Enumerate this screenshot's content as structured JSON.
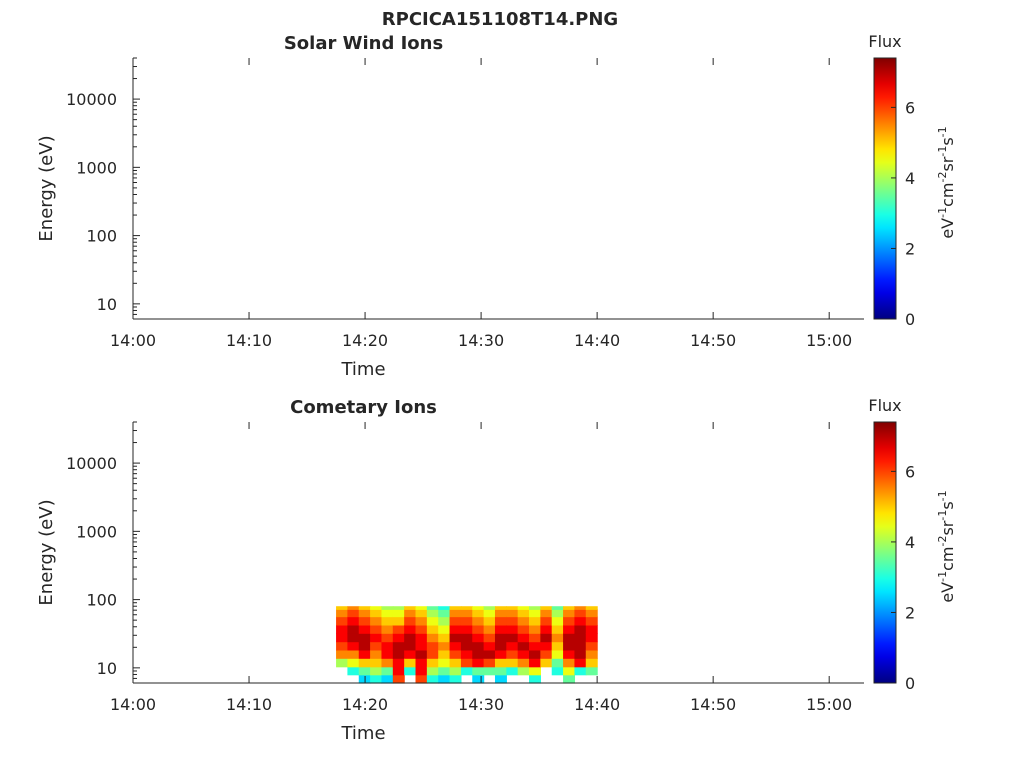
{
  "figure": {
    "title": "RPCICA151108T14.PNG"
  },
  "chart_data": [
    {
      "type": "heatmap",
      "title": "Solar Wind Ions",
      "xlabel": "Time",
      "ylabel": "Energy (eV)",
      "x_ticks": [
        "14:00",
        "14:10",
        "14:20",
        "14:30",
        "14:40",
        "14:50",
        "15:00"
      ],
      "x_range": [
        "14:00",
        "15:03"
      ],
      "y_scale": "log",
      "y_ticks": [
        10,
        100,
        1000,
        10000
      ],
      "y_tick_labels": [
        "10",
        "100",
        "1000",
        "10000"
      ],
      "y_range": [
        6,
        40000
      ],
      "colorbar": {
        "label": "Flux",
        "units": "eV-1cm-2sr-1s-1",
        "ticks": [
          0,
          2,
          4,
          6
        ],
        "range": [
          0,
          7.4
        ],
        "colormap": "jet"
      },
      "data_present": false,
      "x": [],
      "y": [],
      "z": []
    },
    {
      "type": "heatmap",
      "title": "Cometary Ions",
      "xlabel": "Time",
      "ylabel": "Energy (eV)",
      "x_ticks": [
        "14:00",
        "14:10",
        "14:20",
        "14:30",
        "14:40",
        "14:50",
        "15:00"
      ],
      "x_range": [
        "14:00",
        "15:03"
      ],
      "y_scale": "log",
      "y_ticks": [
        10,
        100,
        1000,
        10000
      ],
      "y_tick_labels": [
        "10",
        "100",
        "1000",
        "10000"
      ],
      "y_range": [
        6,
        40000
      ],
      "colorbar": {
        "label": "Flux",
        "units": "eV-1cm-2sr-1s-1",
        "ticks": [
          0,
          2,
          4,
          6
        ],
        "range": [
          0,
          7.4
        ],
        "colormap": "jet"
      },
      "data_present": true,
      "data_time_range": [
        "14:17:30",
        "14:40:00"
      ],
      "x": [
        "14:18",
        "14:19",
        "14:20",
        "14:21",
        "14:22",
        "14:23",
        "14:24",
        "14:25",
        "14:26",
        "14:27",
        "14:28",
        "14:29",
        "14:30",
        "14:31",
        "14:32",
        "14:33",
        "14:34",
        "14:35",
        "14:36",
        "14:37",
        "14:38",
        "14:39",
        "14:40"
      ],
      "y": [
        7,
        9,
        12,
        16,
        21,
        28,
        37,
        49,
        65,
        80
      ],
      "z": [
        [
          0.0,
          0.0,
          2.5,
          3.0,
          2.5,
          6.0,
          0.0,
          6.0,
          3.0,
          2.5,
          3.0,
          0.0,
          2.5,
          0.0,
          2.5,
          0.0,
          0.0,
          3.0,
          0.0,
          0.0,
          3.5,
          0.0,
          0.0
        ],
        [
          0.0,
          3.0,
          3.5,
          4.0,
          3.5,
          6.5,
          3.0,
          6.5,
          4.0,
          3.5,
          4.0,
          3.0,
          3.5,
          3.5,
          3.5,
          3.0,
          4.0,
          4.5,
          0.0,
          3.0,
          4.5,
          3.0,
          3.5
        ],
        [
          4.0,
          4.5,
          5.0,
          5.0,
          5.5,
          6.5,
          5.0,
          6.5,
          5.0,
          4.5,
          5.0,
          6.0,
          6.5,
          6.0,
          5.0,
          5.0,
          5.5,
          6.5,
          5.0,
          3.5,
          5.5,
          6.5,
          5.0
        ],
        [
          5.5,
          5.5,
          6.5,
          5.5,
          6.5,
          7.0,
          6.5,
          7.0,
          6.0,
          5.0,
          6.0,
          6.5,
          7.0,
          7.0,
          6.5,
          6.0,
          6.5,
          7.0,
          6.0,
          4.5,
          6.5,
          7.0,
          5.5
        ],
        [
          6.0,
          6.5,
          7.0,
          6.0,
          6.5,
          7.0,
          7.0,
          6.5,
          6.0,
          5.5,
          6.5,
          7.0,
          7.0,
          6.5,
          7.0,
          6.5,
          7.0,
          6.5,
          6.5,
          5.0,
          7.0,
          7.0,
          6.0
        ],
        [
          6.5,
          7.0,
          7.0,
          6.5,
          6.0,
          6.5,
          7.0,
          6.5,
          5.5,
          5.0,
          7.0,
          7.0,
          6.5,
          6.0,
          7.0,
          7.0,
          6.5,
          6.0,
          7.0,
          5.5,
          7.0,
          7.0,
          6.5
        ],
        [
          6.5,
          7.0,
          6.5,
          6.0,
          5.5,
          6.0,
          6.5,
          6.0,
          5.0,
          4.5,
          6.5,
          6.5,
          6.0,
          5.5,
          6.5,
          6.5,
          6.0,
          5.5,
          6.5,
          5.0,
          6.5,
          7.0,
          6.5
        ],
        [
          6.0,
          6.5,
          6.0,
          5.5,
          5.0,
          5.0,
          6.0,
          5.5,
          4.5,
          4.0,
          6.0,
          6.0,
          5.5,
          5.0,
          6.0,
          6.0,
          5.5,
          5.0,
          6.0,
          4.5,
          6.0,
          6.5,
          6.0
        ],
        [
          5.5,
          6.0,
          5.5,
          5.0,
          4.5,
          4.5,
          5.5,
          5.0,
          4.0,
          3.5,
          5.5,
          5.5,
          5.0,
          4.5,
          5.5,
          5.5,
          5.0,
          4.5,
          5.5,
          4.0,
          5.5,
          6.0,
          5.5
        ],
        [
          5.0,
          5.5,
          5.0,
          4.5,
          4.0,
          4.0,
          5.0,
          4.5,
          3.5,
          3.0,
          5.0,
          5.0,
          4.5,
          4.0,
          5.0,
          5.0,
          4.5,
          4.0,
          5.0,
          3.5,
          5.0,
          5.5,
          5.0
        ]
      ]
    }
  ]
}
